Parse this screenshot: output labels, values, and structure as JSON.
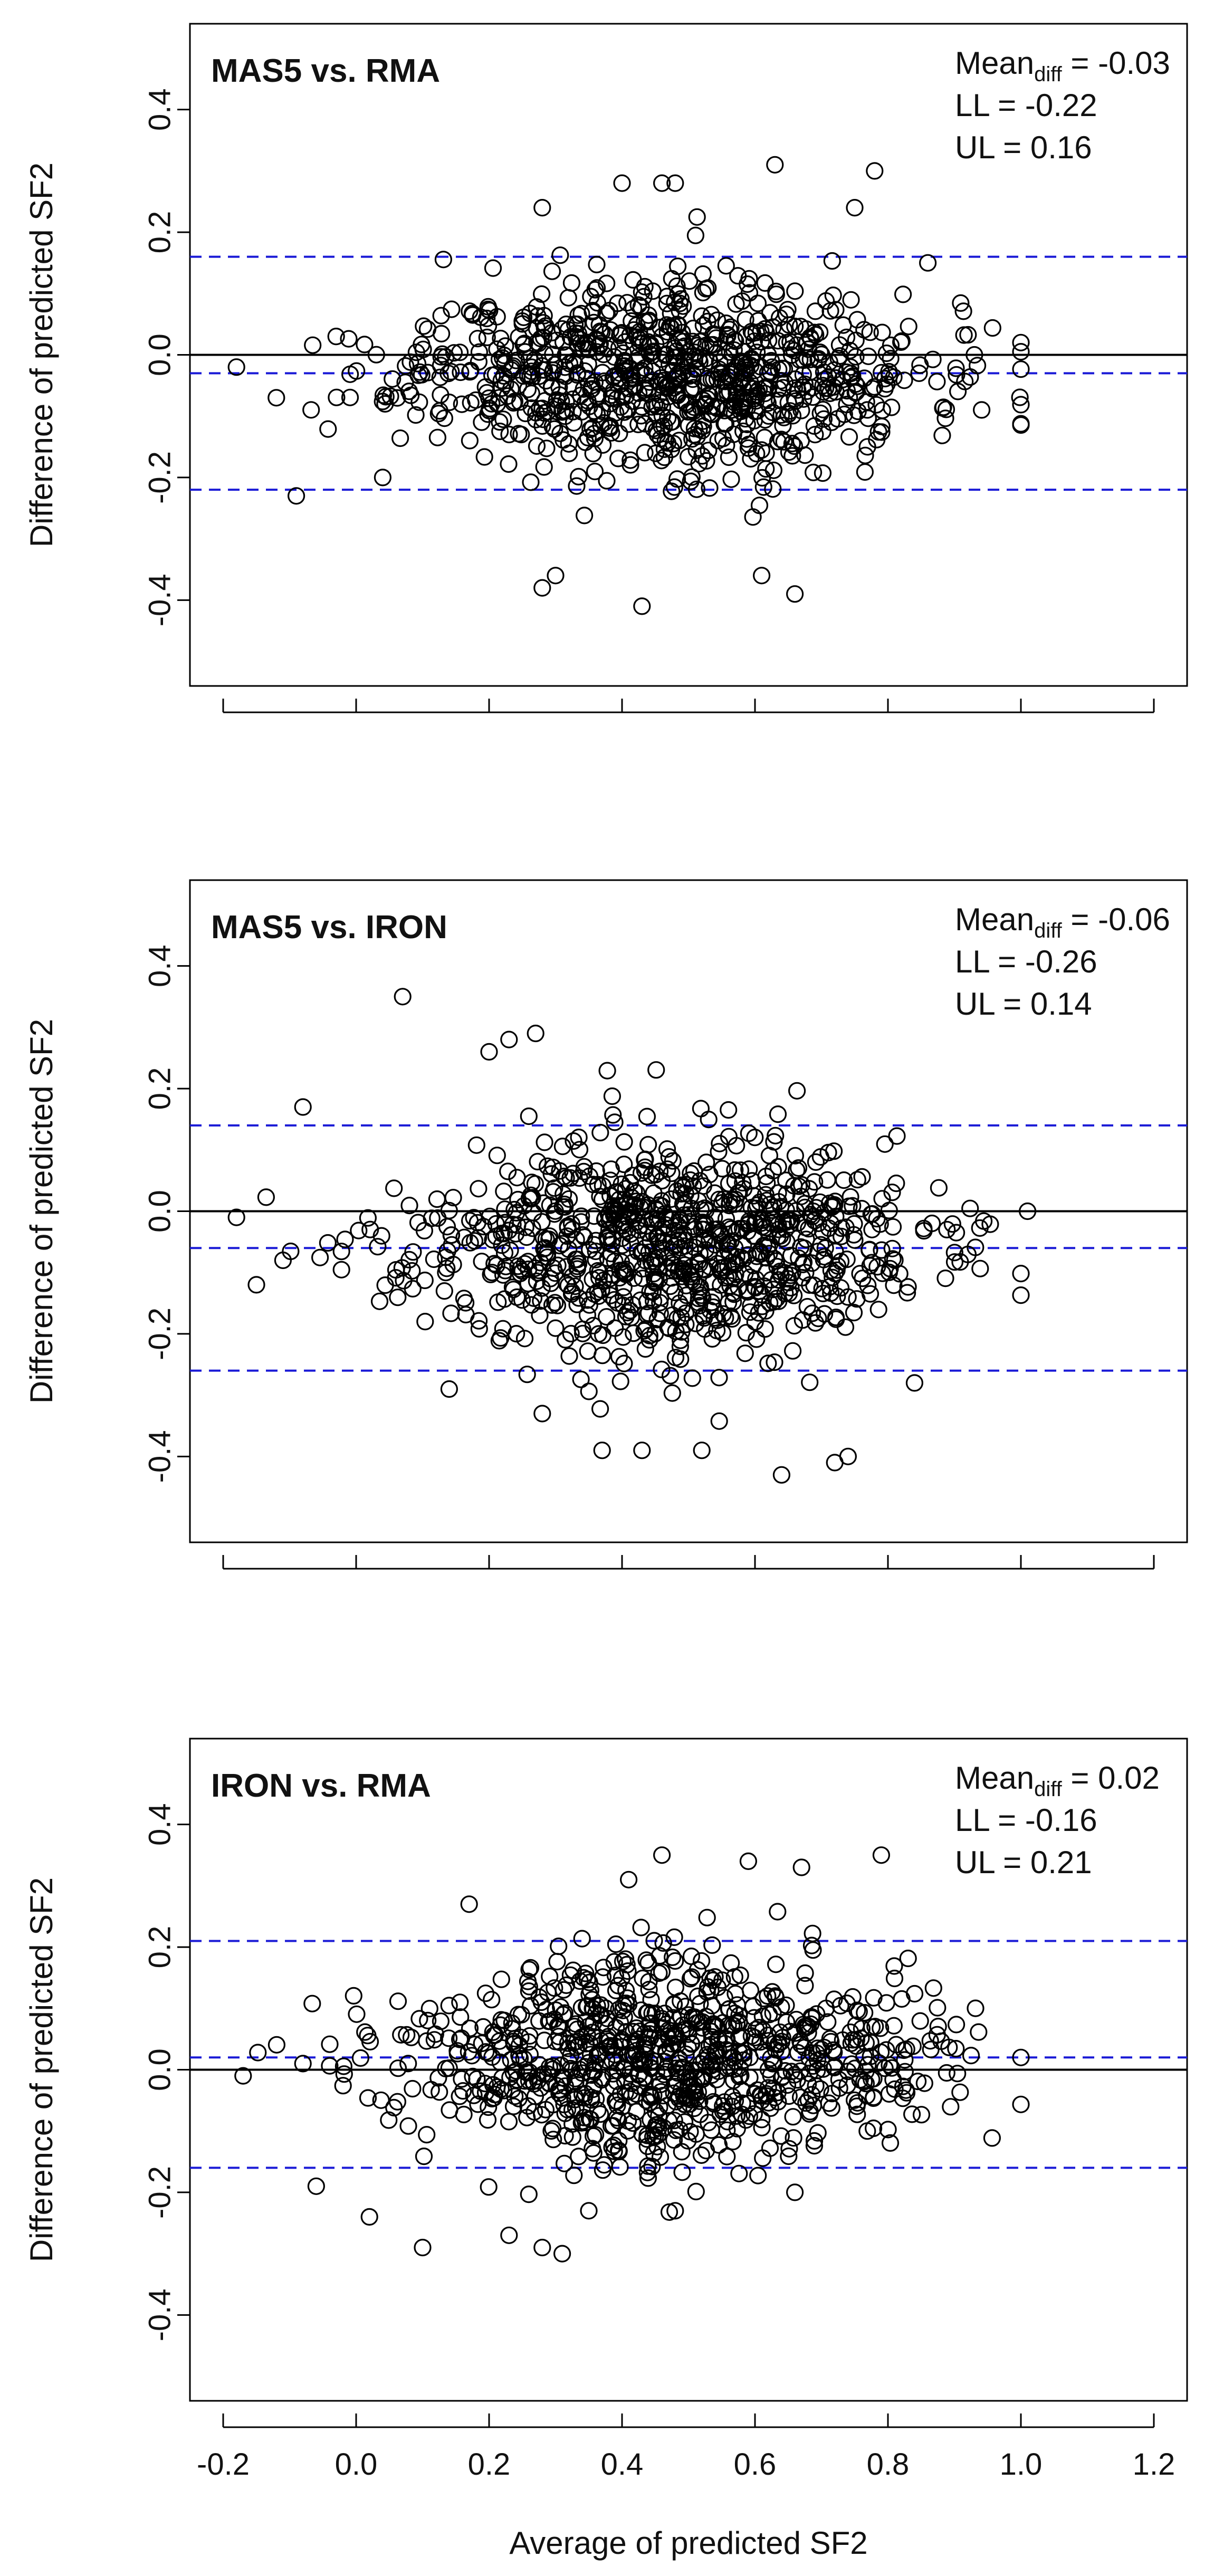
{
  "chart_data": [
    {
      "type": "scatter",
      "title": "MAS5 vs. RMA",
      "xlabel": "",
      "ylabel": "Difference of predicted SF2",
      "xlim": [
        -0.25,
        1.25
      ],
      "ylim": [
        -0.54,
        0.54
      ],
      "xticks": [
        "",
        "",
        "",
        "",
        "",
        "",
        "",
        ""
      ],
      "yticks": [
        -0.4,
        -0.2,
        0.0,
        0.2,
        0.4
      ],
      "ytick_labels": [
        "-0.4",
        "-0.2",
        "0.0",
        "0.2",
        "0.4"
      ],
      "stats": {
        "mean_prefix": "Mean",
        "mean_sub": "diff",
        "mean_value": "= -0.03",
        "ll": "LL = -0.22",
        "ul": "UL = 0.16"
      },
      "lines": {
        "mean": -0.03,
        "ll": -0.22,
        "ul": 0.16,
        "zero": 0.0
      },
      "cloud": {
        "n": 900,
        "seed": 11,
        "center_x": 0.47,
        "spread_x": 0.19,
        "center_y": -0.03,
        "spread_y": 0.085,
        "xmin": -0.18,
        "xmax": 1.0
      },
      "outliers": [
        {
          "x": -0.18,
          "y": -0.02
        },
        {
          "x": -0.12,
          "y": -0.07
        },
        {
          "x": -0.09,
          "y": -0.23
        },
        {
          "x": -0.03,
          "y": 0.03
        },
        {
          "x": 0.04,
          "y": -0.2
        },
        {
          "x": 0.28,
          "y": -0.38
        },
        {
          "x": 0.3,
          "y": -0.36
        },
        {
          "x": 0.43,
          "y": -0.41
        },
        {
          "x": 0.61,
          "y": -0.36
        },
        {
          "x": 0.66,
          "y": -0.39
        },
        {
          "x": 0.48,
          "y": 0.28
        },
        {
          "x": 0.46,
          "y": 0.28
        },
        {
          "x": 0.63,
          "y": 0.31
        },
        {
          "x": 0.78,
          "y": 0.3
        },
        {
          "x": 0.28,
          "y": 0.24
        },
        {
          "x": 0.4,
          "y": 0.28
        },
        {
          "x": 0.75,
          "y": 0.24
        },
        {
          "x": 1.0,
          "y": 0.02
        },
        {
          "x": 0.93,
          "y": 0.0
        },
        {
          "x": 0.86,
          "y": 0.15
        }
      ]
    },
    {
      "type": "scatter",
      "title": "MAS5 vs. IRON",
      "xlabel": "",
      "ylabel": "Difference of predicted SF2",
      "xlim": [
        -0.25,
        1.25
      ],
      "ylim": [
        -0.54,
        0.54
      ],
      "xticks": [
        "",
        "",
        "",
        "",
        "",
        "",
        "",
        ""
      ],
      "yticks": [
        -0.4,
        -0.2,
        0.0,
        0.2,
        0.4
      ],
      "ytick_labels": [
        "-0.4",
        "-0.2",
        "0.0",
        "0.2",
        "0.4"
      ],
      "stats": {
        "mean_prefix": "Mean",
        "mean_sub": "diff",
        "mean_value": "= -0.06",
        "ll": "LL = -0.26",
        "ul": "UL = 0.14"
      },
      "lines": {
        "mean": -0.06,
        "ll": -0.26,
        "ul": 0.14,
        "zero": 0.0
      },
      "cloud": {
        "n": 900,
        "seed": 23,
        "center_x": 0.46,
        "spread_x": 0.19,
        "center_y": -0.06,
        "spread_y": 0.095,
        "xmin": -0.15,
        "xmax": 1.0
      },
      "outliers": [
        {
          "x": -0.18,
          "y": -0.01
        },
        {
          "x": -0.15,
          "y": -0.12
        },
        {
          "x": -0.11,
          "y": -0.08
        },
        {
          "x": -0.08,
          "y": 0.17
        },
        {
          "x": 0.07,
          "y": 0.35
        },
        {
          "x": 0.14,
          "y": -0.29
        },
        {
          "x": 0.28,
          "y": -0.33
        },
        {
          "x": 0.37,
          "y": -0.39
        },
        {
          "x": 0.43,
          "y": -0.39
        },
        {
          "x": 0.52,
          "y": -0.39
        },
        {
          "x": 0.64,
          "y": -0.43
        },
        {
          "x": 0.72,
          "y": -0.41
        },
        {
          "x": 0.74,
          "y": -0.4
        },
        {
          "x": 0.27,
          "y": 0.29
        },
        {
          "x": 0.23,
          "y": 0.28
        },
        {
          "x": 0.2,
          "y": 0.26
        },
        {
          "x": 1.01,
          "y": 0.0
        },
        {
          "x": 0.84,
          "y": -0.28
        }
      ]
    },
    {
      "type": "scatter",
      "title": "IRON vs. RMA",
      "xlabel": "Average of predicted SF2",
      "ylabel": "Difference of predicted SF2",
      "xlim": [
        -0.25,
        1.25
      ],
      "ylim": [
        -0.54,
        0.54
      ],
      "xticks": [
        "-0.2",
        "0.0",
        "0.2",
        "0.4",
        "0.6",
        "0.8",
        "1.0",
        "1.2"
      ],
      "yticks": [
        -0.4,
        -0.2,
        0.0,
        0.2,
        0.4
      ],
      "ytick_labels": [
        "-0.4",
        "-0.2",
        "0.0",
        "0.2",
        "0.4"
      ],
      "stats": {
        "mean_prefix": "Mean",
        "mean_sub": "diff",
        "mean_value": "= 0.02",
        "ll": "LL = -0.16",
        "ul": "UL = 0.21"
      },
      "lines": {
        "mean": 0.02,
        "ll": -0.16,
        "ul": 0.21,
        "zero": 0.0
      },
      "cloud": {
        "n": 900,
        "seed": 37,
        "center_x": 0.47,
        "spread_x": 0.19,
        "center_y": 0.02,
        "spread_y": 0.09,
        "xmin": -0.15,
        "xmax": 1.0
      },
      "outliers": [
        {
          "x": -0.17,
          "y": -0.01
        },
        {
          "x": -0.08,
          "y": 0.01
        },
        {
          "x": -0.06,
          "y": -0.19
        },
        {
          "x": 0.02,
          "y": -0.24
        },
        {
          "x": 0.1,
          "y": -0.29
        },
        {
          "x": 0.23,
          "y": -0.27
        },
        {
          "x": 0.28,
          "y": -0.29
        },
        {
          "x": 0.31,
          "y": -0.3
        },
        {
          "x": 0.35,
          "y": -0.23
        },
        {
          "x": 0.48,
          "y": -0.23
        },
        {
          "x": 0.66,
          "y": -0.2
        },
        {
          "x": 0.46,
          "y": 0.35
        },
        {
          "x": 0.59,
          "y": 0.34
        },
        {
          "x": 0.67,
          "y": 0.33
        },
        {
          "x": 0.79,
          "y": 0.35
        },
        {
          "x": 0.41,
          "y": 0.31
        },
        {
          "x": 1.0,
          "y": 0.02
        },
        {
          "x": 0.17,
          "y": 0.27
        }
      ]
    }
  ]
}
